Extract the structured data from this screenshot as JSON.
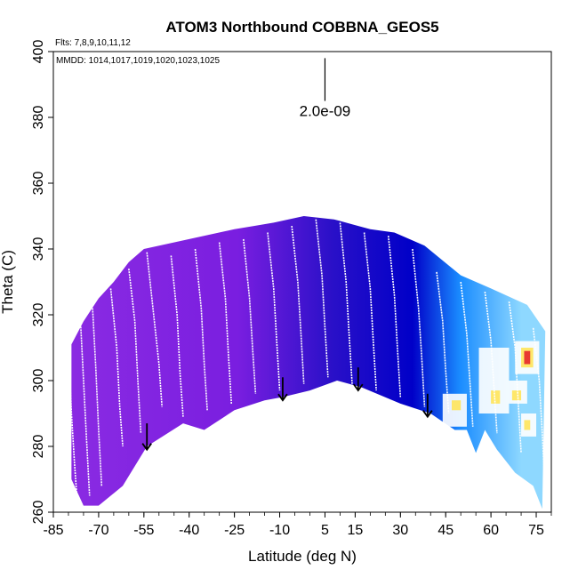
{
  "chart_data": {
    "type": "curtain",
    "title": "ATOM3 Northbound COBBNA_GEOS5",
    "flights_label": "Flts: 7,8,9,10,11,12",
    "dates_label": "MMDD: 1014,1017,1019,1020,1023,1025",
    "xlabel": "Latitude (deg N)",
    "ylabel": "Theta (C)",
    "xlim": [
      -85,
      80
    ],
    "ylim": [
      260,
      400
    ],
    "x_ticks": [
      -85,
      -70,
      -55,
      -40,
      -25,
      -10,
      5,
      15,
      30,
      45,
      60,
      75
    ],
    "y_ticks": [
      260,
      280,
      300,
      320,
      340,
      360,
      380,
      400
    ],
    "scale_label": "2.0e-09",
    "colors": {
      "south": "#8a2be2",
      "mid": "#7a1ee0",
      "tropics": "#2a10c8",
      "north": "#0000c8",
      "high_lat": "#1a8cff",
      "light": "#8ed8ff",
      "white": "#ffffff",
      "yellow": "#ffe45a",
      "red": "#e6262b",
      "arrow": "#000000"
    },
    "curtain_top": [
      [
        -79,
        311
      ],
      [
        -75,
        318
      ],
      [
        -70,
        325
      ],
      [
        -65,
        330
      ],
      [
        -60,
        336
      ],
      [
        -55,
        340
      ],
      [
        -40,
        343
      ],
      [
        -25,
        346
      ],
      [
        -12,
        348
      ],
      [
        -2,
        350
      ],
      [
        8,
        349
      ],
      [
        20,
        346
      ],
      [
        28,
        345
      ],
      [
        38,
        341
      ],
      [
        50,
        332
      ],
      [
        60,
        328
      ],
      [
        72,
        323
      ],
      [
        78,
        315
      ]
    ],
    "curtain_bottom": [
      [
        -79,
        270
      ],
      [
        -75,
        262
      ],
      [
        -70,
        262
      ],
      [
        -62,
        268
      ],
      [
        -54,
        280
      ],
      [
        -42,
        287
      ],
      [
        -35,
        285
      ],
      [
        -25,
        291
      ],
      [
        -15,
        294
      ],
      [
        -9,
        295
      ],
      [
        0,
        297
      ],
      [
        9,
        300
      ],
      [
        17,
        298
      ],
      [
        30,
        293
      ],
      [
        40,
        290
      ],
      [
        48,
        285
      ],
      [
        52,
        285
      ],
      [
        55,
        278
      ],
      [
        58,
        285
      ],
      [
        62,
        279
      ],
      [
        68,
        272
      ],
      [
        74,
        268
      ],
      [
        77,
        261
      ]
    ],
    "patches": [
      {
        "x": [
          44,
          52
        ],
        "y": [
          286,
          296
        ],
        "color": "white"
      },
      {
        "x": [
          47,
          50
        ],
        "y": [
          291,
          294
        ],
        "color": "yellow"
      },
      {
        "x": [
          56,
          66
        ],
        "y": [
          290,
          310
        ],
        "color": "white"
      },
      {
        "x": [
          60,
          63
        ],
        "y": [
          293,
          297
        ],
        "color": "yellow"
      },
      {
        "x": [
          66,
          72
        ],
        "y": [
          293,
          300
        ],
        "color": "white"
      },
      {
        "x": [
          67,
          70
        ],
        "y": [
          294,
          297
        ],
        "color": "yellow"
      },
      {
        "x": [
          68,
          76
        ],
        "y": [
          302,
          312
        ],
        "color": "white"
      },
      {
        "x": [
          70,
          74
        ],
        "y": [
          304,
          310
        ],
        "color": "yellow"
      },
      {
        "x": [
          71,
          73
        ],
        "y": [
          305,
          309
        ],
        "color": "red"
      },
      {
        "x": [
          70,
          75
        ],
        "y": [
          283,
          290
        ],
        "color": "white"
      },
      {
        "x": [
          71,
          73
        ],
        "y": [
          285,
          288
        ],
        "color": "yellow"
      }
    ],
    "profiles": [
      {
        "x": [
          -80,
          -79,
          -78,
          -77
        ],
        "y": [
          311,
          290,
          275,
          262
        ]
      },
      {
        "x": [
          -76,
          -75,
          -74,
          -73
        ],
        "y": [
          318,
          300,
          282,
          265
        ]
      },
      {
        "x": [
          -72,
          -71,
          -70,
          -69
        ],
        "y": [
          322,
          305,
          285,
          268
        ]
      },
      {
        "x": [
          -66,
          -64,
          -63,
          -62
        ],
        "y": [
          328,
          310,
          292,
          280
        ]
      },
      {
        "x": [
          -60,
          -58,
          -57,
          -56
        ],
        "y": [
          334,
          318,
          300,
          284
        ]
      },
      {
        "x": [
          -54,
          -52,
          -50,
          -49
        ],
        "y": [
          339,
          322,
          305,
          292
        ]
      },
      {
        "x": [
          -46,
          -44,
          -43,
          -42
        ],
        "y": [
          338,
          320,
          302,
          289
        ]
      },
      {
        "x": [
          -38,
          -36,
          -35,
          -34
        ],
        "y": [
          340,
          322,
          305,
          291
        ]
      },
      {
        "x": [
          -30,
          -28,
          -27,
          -26
        ],
        "y": [
          342,
          325,
          308,
          293
        ]
      },
      {
        "x": [
          -22,
          -20,
          -19,
          -18
        ],
        "y": [
          343,
          325,
          310,
          296
        ]
      },
      {
        "x": [
          -14,
          -12,
          -11,
          -10
        ],
        "y": [
          345,
          328,
          312,
          297
        ]
      },
      {
        "x": [
          -6,
          -4,
          -3,
          -2
        ],
        "y": [
          347,
          330,
          315,
          299
        ]
      },
      {
        "x": [
          2,
          4,
          5,
          6
        ],
        "y": [
          349,
          332,
          316,
          301
        ]
      },
      {
        "x": [
          10,
          12,
          13,
          14
        ],
        "y": [
          348,
          330,
          314,
          299
        ]
      },
      {
        "x": [
          18,
          20,
          21,
          22
        ],
        "y": [
          345,
          328,
          312,
          297
        ]
      },
      {
        "x": [
          26,
          28,
          29,
          30
        ],
        "y": [
          344,
          326,
          310,
          295
        ]
      },
      {
        "x": [
          34,
          36,
          37,
          38
        ],
        "y": [
          340,
          322,
          308,
          292
        ]
      },
      {
        "x": [
          42,
          44,
          45,
          46
        ],
        "y": [
          333,
          318,
          303,
          290
        ]
      },
      {
        "x": [
          50,
          52,
          53,
          54
        ],
        "y": [
          330,
          314,
          300,
          286
        ]
      },
      {
        "x": [
          58,
          60,
          61,
          62
        ],
        "y": [
          327,
          312,
          298,
          284
        ]
      },
      {
        "x": [
          66,
          68,
          69,
          70
        ],
        "y": [
          324,
          310,
          294,
          278
        ]
      },
      {
        "x": [
          74,
          76,
          77,
          78
        ],
        "y": [
          316,
          300,
          284,
          265
        ]
      }
    ],
    "arrows": [
      {
        "x": -54,
        "y_top": 287,
        "y_bottom": 279
      },
      {
        "x": -9,
        "y_top": 301,
        "y_bottom": 294
      },
      {
        "x": 16,
        "y_top": 304,
        "y_bottom": 297
      },
      {
        "x": 39,
        "y_top": 296,
        "y_bottom": 289
      }
    ],
    "scale_bar": {
      "x": 5,
      "y_top": 398,
      "y_bottom": 385
    }
  }
}
